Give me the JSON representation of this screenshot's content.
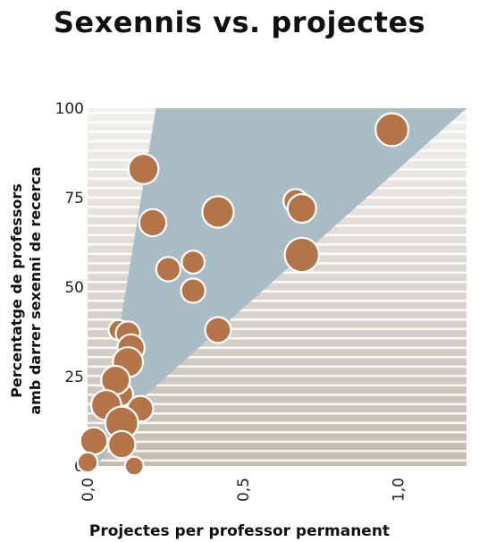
{
  "title": "Sexennis vs. projectes",
  "chart_data": {
    "type": "scatter",
    "title": "Sexennis vs. projectes",
    "xlabel": "Projectes per professor permanent",
    "ylabel_lines": [
      "Percentatge de professors",
      "amb darrer sexenni de recerca"
    ],
    "xlim": [
      0,
      1.22
    ],
    "ylim": [
      0,
      100
    ],
    "x_ticks": [
      0,
      0.5,
      1.0
    ],
    "x_tick_labels": [
      "0,0",
      "0,5",
      "1,0"
    ],
    "y_ticks": [
      0,
      25,
      50,
      75,
      100
    ],
    "y_tick_labels": [
      "0",
      "25",
      "50",
      "75",
      "100"
    ],
    "grid": "horizontal stripes",
    "band_polygon": [
      [
        0.03,
        0
      ],
      [
        0.22,
        100
      ],
      [
        1.22,
        100
      ],
      [
        0.19,
        20
      ]
    ],
    "colors": {
      "marker": "#b57448",
      "marker_stroke": "#ffffff",
      "band": "#a9bcc4",
      "bg_top": "#f2f0ec",
      "bg_bottom": "#c2bcb2"
    },
    "points": [
      {
        "x": 0.98,
        "y": 94,
        "size": 1.15
      },
      {
        "x": 0.18,
        "y": 83,
        "size": 1.05
      },
      {
        "x": 0.67,
        "y": 74,
        "size": 0.85
      },
      {
        "x": 0.69,
        "y": 72,
        "size": 1.0
      },
      {
        "x": 0.42,
        "y": 71,
        "size": 1.1
      },
      {
        "x": 0.21,
        "y": 68,
        "size": 0.95
      },
      {
        "x": 0.69,
        "y": 59,
        "size": 1.2
      },
      {
        "x": 0.34,
        "y": 57,
        "size": 0.8
      },
      {
        "x": 0.26,
        "y": 55,
        "size": 0.85
      },
      {
        "x": 0.34,
        "y": 49,
        "size": 0.85
      },
      {
        "x": 0.1,
        "y": 38,
        "size": 0.7
      },
      {
        "x": 0.42,
        "y": 38,
        "size": 0.9
      },
      {
        "x": 0.13,
        "y": 37,
        "size": 0.85
      },
      {
        "x": 0.14,
        "y": 33,
        "size": 0.95
      },
      {
        "x": 0.13,
        "y": 29,
        "size": 1.05
      },
      {
        "x": 0.11,
        "y": 20,
        "size": 0.8
      },
      {
        "x": 0.09,
        "y": 24,
        "size": 1.0
      },
      {
        "x": 0.06,
        "y": 17,
        "size": 1.05
      },
      {
        "x": 0.17,
        "y": 16,
        "size": 0.9
      },
      {
        "x": 0.11,
        "y": 12,
        "size": 1.15
      },
      {
        "x": 0.02,
        "y": 7,
        "size": 0.95
      },
      {
        "x": 0.11,
        "y": 6,
        "size": 0.95
      },
      {
        "x": 0.0,
        "y": 1,
        "size": 0.7
      },
      {
        "x": 0.15,
        "y": 0,
        "size": 0.65
      }
    ]
  }
}
